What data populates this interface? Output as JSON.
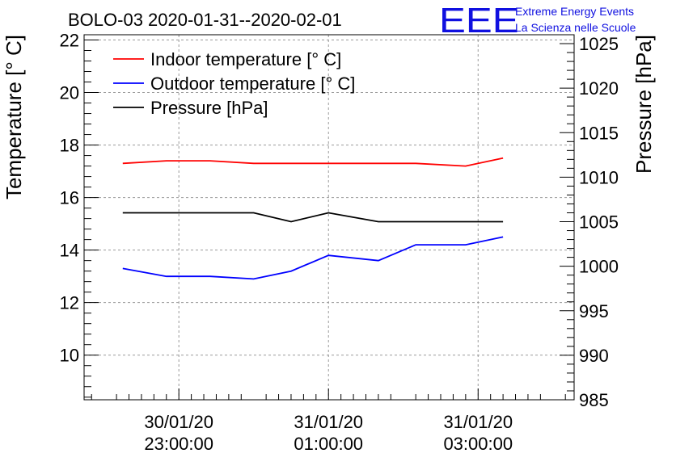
{
  "chart_data": {
    "type": "line",
    "title": "BOLO-03 2020-01-31--2020-02-01",
    "ylabel": "Temperature [° C]",
    "ylabel_right": "Pressure [hPa]",
    "ylim": [
      8.3,
      22.2
    ],
    "ylim_right": [
      985,
      1026
    ],
    "yticks": [
      "10",
      "12",
      "14",
      "16",
      "18",
      "20",
      "22"
    ],
    "yticks_right": [
      "985",
      "990",
      "995",
      "1000",
      "1005",
      "1010",
      "1015",
      "1020",
      "1025"
    ],
    "xlim": [
      "30/01/20 21:44",
      "31/01/20 04:17"
    ],
    "xticks": [
      {
        "t": "30/01/20 23:00",
        "line1": "30/01/20",
        "line2": "23:00:00"
      },
      {
        "t": "31/01/20 01:00",
        "line1": "31/01/20",
        "line2": "01:00:00"
      },
      {
        "t": "31/01/20 03:00",
        "line1": "31/01/20",
        "line2": "03:00:00"
      }
    ],
    "grid": true,
    "legend_position": "top-left",
    "series": [
      {
        "name": "Indoor temperature [° C]",
        "color": "#ff0000",
        "axis": "left",
        "x": [
          "30/01/20 22:15",
          "30/01/20 22:50",
          "30/01/20 23:25",
          "31/01/20 00:00",
          "31/01/20 00:30",
          "31/01/20 01:00",
          "31/01/20 01:40",
          "31/01/20 02:10",
          "31/01/20 02:50",
          "31/01/20 03:20"
        ],
        "values": [
          17.3,
          17.4,
          17.4,
          17.3,
          17.3,
          17.3,
          17.3,
          17.3,
          17.2,
          17.5
        ]
      },
      {
        "name": "Outdoor temperature [° C]",
        "color": "#0000ff",
        "axis": "left",
        "x": [
          "30/01/20 22:15",
          "30/01/20 22:50",
          "30/01/20 23:25",
          "31/01/20 00:00",
          "31/01/20 00:30",
          "31/01/20 01:00",
          "31/01/20 01:40",
          "31/01/20 02:10",
          "31/01/20 02:50",
          "31/01/20 03:20"
        ],
        "values": [
          13.3,
          13.0,
          13.0,
          12.9,
          13.2,
          13.8,
          13.6,
          14.2,
          14.2,
          14.5
        ]
      },
      {
        "name": "Pressure [hPa]",
        "color": "#000000",
        "axis": "right",
        "x": [
          "30/01/20 22:15",
          "30/01/20 22:50",
          "30/01/20 23:25",
          "31/01/20 00:00",
          "31/01/20 00:30",
          "31/01/20 01:00",
          "31/01/20 01:40",
          "31/01/20 02:10",
          "31/01/20 02:50",
          "31/01/20 03:20"
        ],
        "values": [
          1006,
          1006,
          1006,
          1006,
          1005,
          1006,
          1005,
          1005,
          1005,
          1005
        ]
      }
    ]
  },
  "logo": {
    "letters": "EEE",
    "line1": "Extreme Energy Events",
    "line2": "La Scienza nelle Scuole",
    "color": "#1010e0"
  }
}
